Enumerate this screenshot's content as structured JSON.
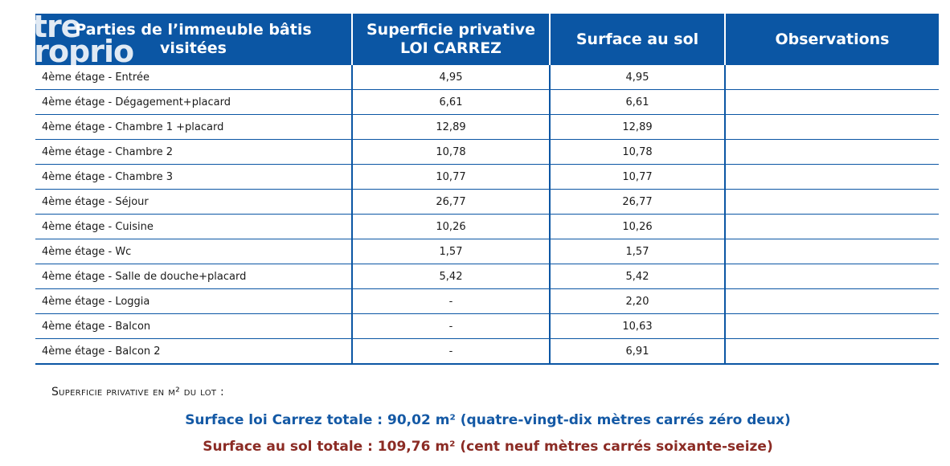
{
  "watermark": {
    "line1": "être",
    "line2": "proprio"
  },
  "table": {
    "headers": [
      "Parties de l’immeuble bâtis visitées",
      "Superficie privative LOI CARREZ",
      "Surface au sol",
      "Observations"
    ],
    "rows": [
      {
        "part": "4ème étage - Entrée",
        "carrez": "4,95",
        "sol": "4,95",
        "obs": ""
      },
      {
        "part": "4ème étage - Dégagement+placard",
        "carrez": "6,61",
        "sol": "6,61",
        "obs": ""
      },
      {
        "part": "4ème étage - Chambre 1 +placard",
        "carrez": "12,89",
        "sol": "12,89",
        "obs": ""
      },
      {
        "part": "4ème étage - Chambre 2",
        "carrez": "10,78",
        "sol": "10,78",
        "obs": ""
      },
      {
        "part": "4ème étage - Chambre 3",
        "carrez": "10,77",
        "sol": "10,77",
        "obs": ""
      },
      {
        "part": "4ème étage - Séjour",
        "carrez": "26,77",
        "sol": "26,77",
        "obs": ""
      },
      {
        "part": "4ème étage - Cuisine",
        "carrez": "10,26",
        "sol": "10,26",
        "obs": ""
      },
      {
        "part": "4ème étage - Wc",
        "carrez": "1,57",
        "sol": "1,57",
        "obs": ""
      },
      {
        "part": "4ème étage - Salle de douche+placard",
        "carrez": "5,42",
        "sol": "5,42",
        "obs": ""
      },
      {
        "part": "4ème étage - Loggia",
        "carrez": "-",
        "sol": "2,20",
        "obs": ""
      },
      {
        "part": "4ème étage - Balcon",
        "carrez": "-",
        "sol": "10,63",
        "obs": ""
      },
      {
        "part": "4ème étage - Balcon 2",
        "carrez": "-",
        "sol": "6,91",
        "obs": ""
      }
    ]
  },
  "summary": {
    "heading": "Superficie privative en m² du lot :",
    "carrez_total": "Surface loi Carrez totale : 90,02 m² (quatre-vingt-dix mètres carrés zéro deux)",
    "sol_total": "Surface au sol totale : 109,76 m² (cent neuf mètres carrés soixante-seize)"
  },
  "colors": {
    "header_bg": "#0b56a4",
    "carrez_text": "#1459a5",
    "sol_text": "#8b2b24"
  }
}
